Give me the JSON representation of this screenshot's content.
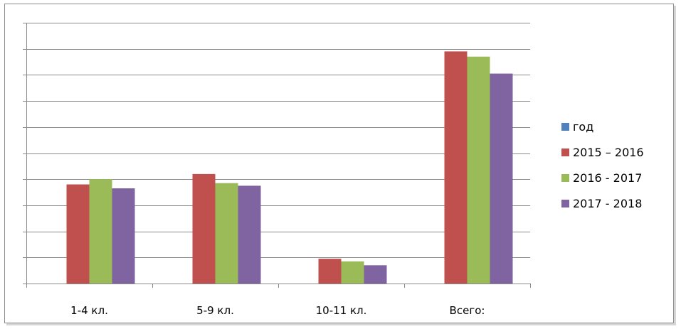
{
  "chart_data": {
    "type": "bar",
    "categories": [
      "1-4 кл.",
      "5-9 кл.",
      "10-11 кл.",
      "Всего:"
    ],
    "series": [
      {
        "name": "год",
        "color": "#4f81bd",
        "values": [
          0,
          0,
          0,
          0
        ]
      },
      {
        "name": "2015 – 2016",
        "color": "#c0504d",
        "values": [
          3.8,
          4.2,
          0.95,
          8.9
        ]
      },
      {
        "name": "2016 - 2017",
        "color": "#9bbb59",
        "values": [
          4.0,
          3.85,
          0.85,
          8.7
        ]
      },
      {
        "name": "2017 - 2018",
        "color": "#8064a2",
        "values": [
          3.65,
          3.75,
          0.7,
          8.05
        ]
      }
    ],
    "ylim": [
      0,
      10
    ],
    "y_tick_step": 1,
    "show_y_tick_labels": false,
    "grid": true,
    "legend_position": "right"
  }
}
